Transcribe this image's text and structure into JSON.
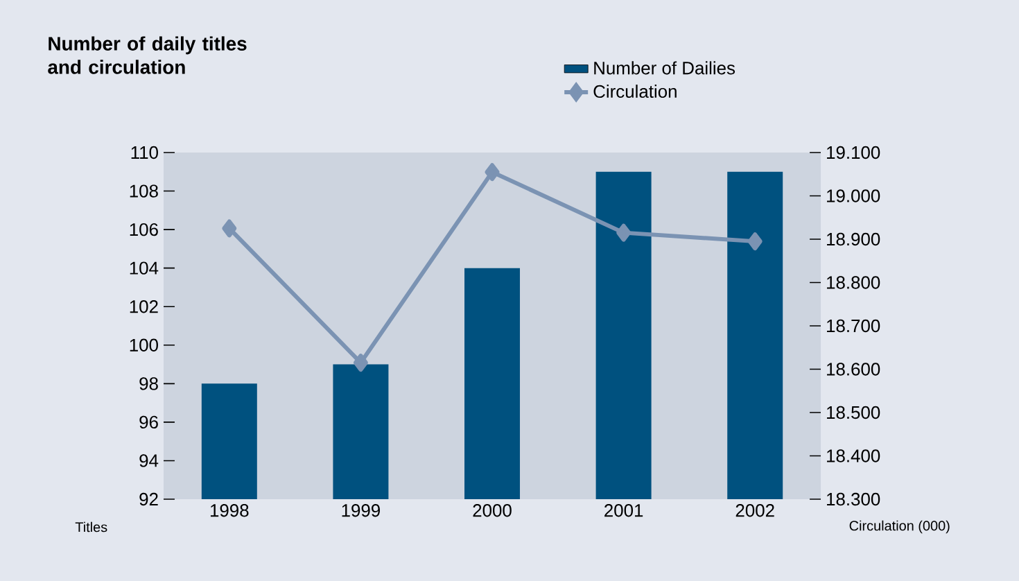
{
  "chart_data": {
    "type": "bar",
    "title": "Number of daily titles and circulation",
    "ylabel": "Titles",
    "y2label": "Circulation (000)",
    "categories": [
      "1998",
      "1999",
      "2000",
      "2001",
      "2002"
    ],
    "series": [
      {
        "name": "Number of Dailies",
        "color": "#00517f",
        "values": [
          98,
          99,
          104,
          109,
          109
        ]
      },
      {
        "name": "Circulation",
        "type": "line",
        "axis": "y2",
        "color": "#7b93b3",
        "marker": "diamond",
        "values": [
          18925,
          18615,
          19055,
          18915,
          18895
        ]
      }
    ],
    "ylim": [
      92,
      110
    ],
    "yticks": [
      92,
      94,
      96,
      98,
      100,
      102,
      104,
      106,
      108,
      110
    ],
    "y2lim": [
      18300,
      19100
    ],
    "y2ticks": [
      {
        "value": 18300,
        "label": "18.300"
      },
      {
        "value": 18400,
        "label": "18.400"
      },
      {
        "value": 18500,
        "label": "18.500"
      },
      {
        "value": 18600,
        "label": "18.600"
      },
      {
        "value": 18700,
        "label": "18.700"
      },
      {
        "value": 18800,
        "label": "18.800"
      },
      {
        "value": 18900,
        "label": "18.900"
      },
      {
        "value": 19000,
        "label": "19.000"
      },
      {
        "value": 19100,
        "label": "19.100"
      }
    ],
    "legend": "top right"
  }
}
